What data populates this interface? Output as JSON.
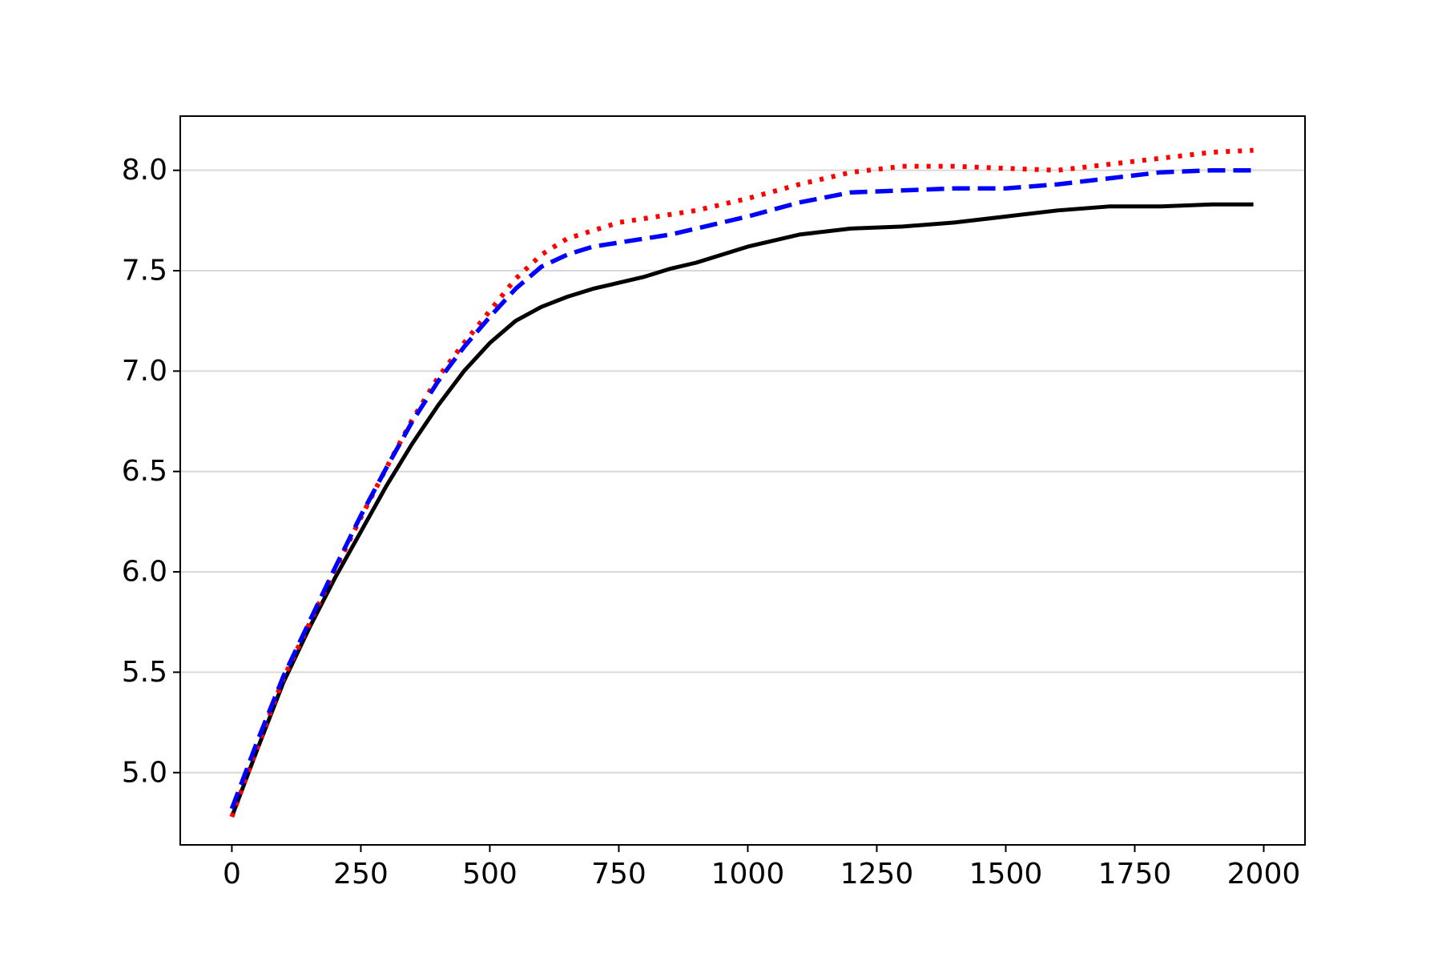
{
  "chart_data": {
    "type": "line",
    "title": "",
    "xlabel": "",
    "ylabel": "",
    "xlim": [
      -100,
      2080
    ],
    "ylim": [
      4.64,
      8.27
    ],
    "x_ticks": [
      0,
      250,
      500,
      750,
      1000,
      1250,
      1500,
      1750,
      2000
    ],
    "x_tick_labels": [
      "0",
      "250",
      "500",
      "750",
      "1000",
      "1250",
      "1500",
      "1750",
      "2000"
    ],
    "y_ticks": [
      5.0,
      5.5,
      6.0,
      6.5,
      7.0,
      7.5,
      8.0
    ],
    "y_tick_labels": [
      "5.0",
      "5.5",
      "6.0",
      "6.5",
      "7.0",
      "7.5",
      "8.0"
    ],
    "grid": "horizontal",
    "legend": "none",
    "series": [
      {
        "style": "solid",
        "color": "#000000",
        "x": [
          0,
          50,
          100,
          150,
          200,
          250,
          300,
          350,
          400,
          450,
          500,
          550,
          600,
          650,
          700,
          750,
          800,
          850,
          900,
          950,
          1000,
          1100,
          1200,
          1300,
          1400,
          1500,
          1600,
          1700,
          1800,
          1900,
          1980
        ],
        "y": [
          4.78,
          5.12,
          5.45,
          5.72,
          5.97,
          6.2,
          6.43,
          6.64,
          6.83,
          7.0,
          7.14,
          7.25,
          7.32,
          7.37,
          7.41,
          7.44,
          7.47,
          7.51,
          7.54,
          7.58,
          7.62,
          7.68,
          7.71,
          7.72,
          7.74,
          7.77,
          7.8,
          7.82,
          7.82,
          7.83,
          7.83
        ]
      },
      {
        "style": "dotted",
        "color": "#ff0000",
        "x": [
          0,
          50,
          100,
          150,
          200,
          250,
          300,
          350,
          400,
          450,
          500,
          550,
          600,
          650,
          700,
          750,
          800,
          850,
          900,
          950,
          1000,
          1100,
          1200,
          1300,
          1400,
          1500,
          1600,
          1700,
          1800,
          1900,
          1980
        ],
        "y": [
          4.78,
          5.13,
          5.47,
          5.74,
          6.01,
          6.27,
          6.52,
          6.76,
          6.97,
          7.14,
          7.3,
          7.46,
          7.58,
          7.66,
          7.7,
          7.74,
          7.76,
          7.78,
          7.8,
          7.83,
          7.86,
          7.93,
          7.99,
          8.02,
          8.02,
          8.01,
          8.0,
          8.03,
          8.06,
          8.09,
          8.1
        ]
      },
      {
        "style": "dashed",
        "color": "#0000ff",
        "x": [
          0,
          50,
          100,
          150,
          200,
          250,
          300,
          350,
          400,
          450,
          500,
          550,
          600,
          650,
          700,
          750,
          800,
          850,
          900,
          950,
          1000,
          1100,
          1200,
          1300,
          1400,
          1500,
          1600,
          1700,
          1800,
          1900,
          1980
        ],
        "y": [
          4.82,
          5.16,
          5.48,
          5.75,
          6.02,
          6.28,
          6.52,
          6.75,
          6.95,
          7.12,
          7.27,
          7.41,
          7.52,
          7.58,
          7.62,
          7.64,
          7.66,
          7.68,
          7.71,
          7.74,
          7.77,
          7.84,
          7.89,
          7.9,
          7.91,
          7.91,
          7.93,
          7.96,
          7.99,
          8.0,
          8.0
        ]
      }
    ]
  }
}
